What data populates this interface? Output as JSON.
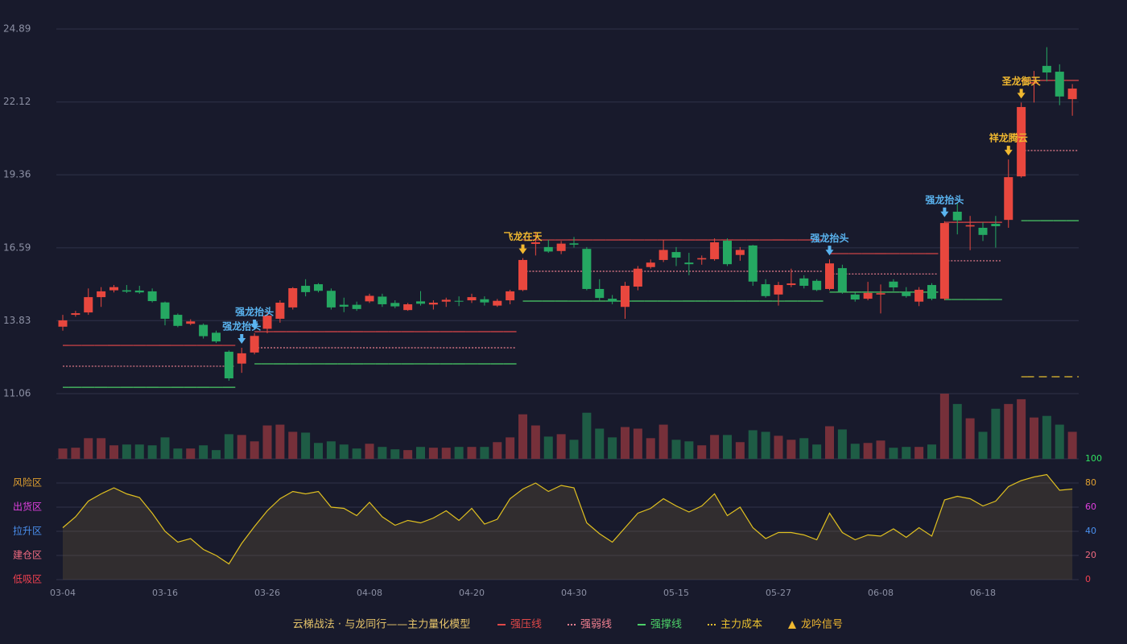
{
  "chart_data": [
    {
      "type": "candlestick",
      "categories": [
        "03-04",
        null,
        null,
        null,
        null,
        null,
        null,
        null,
        "03-16",
        null,
        null,
        null,
        null,
        null,
        null,
        null,
        "03-26",
        null,
        null,
        null,
        null,
        null,
        null,
        null,
        "04-08",
        null,
        null,
        null,
        null,
        null,
        null,
        null,
        "04-20",
        null,
        null,
        null,
        null,
        null,
        null,
        null,
        "04-30",
        null,
        null,
        null,
        null,
        null,
        null,
        null,
        "05-15",
        null,
        null,
        null,
        null,
        null,
        null,
        null,
        "05-27",
        null,
        null,
        null,
        null,
        null,
        null,
        null,
        "06-08",
        null,
        null,
        null,
        null,
        null,
        null,
        null,
        "06-18",
        null,
        null,
        null,
        null,
        null,
        null,
        null
      ],
      "open": [
        13.6,
        14.05,
        14.14,
        14.72,
        14.98,
        14.98,
        14.97,
        14.94,
        14.52,
        14.05,
        13.71,
        13.67,
        13.37,
        12.65,
        12.2,
        12.62,
        13.52,
        13.9,
        14.33,
        15.15,
        15.21,
        14.96,
        14.43,
        14.43,
        14.56,
        14.74,
        14.5,
        14.23,
        14.56,
        14.44,
        14.55,
        14.58,
        14.6,
        14.64,
        14.4,
        14.6,
        14.99,
        16.74,
        16.62,
        16.47,
        16.76,
        16.55,
        15.03,
        14.66,
        14.35,
        15.12,
        15.86,
        16.13,
        16.43,
        16.03,
        16.15,
        16.16,
        16.86,
        16.32,
        16.68,
        15.21,
        14.82,
        15.18,
        15.43,
        15.34,
        15.03,
        15.82,
        14.82,
        14.66,
        14.82,
        15.31,
        14.91,
        14.55,
        15.18,
        14.66,
        17.96,
        17.4,
        17.35,
        17.5,
        17.65,
        19.3,
        22.82,
        23.49,
        23.27,
        22.23
      ],
      "high": [
        14.05,
        14.2,
        15.05,
        15.1,
        15.18,
        15.18,
        15.15,
        15.05,
        14.55,
        14.1,
        13.88,
        13.72,
        13.45,
        12.7,
        12.8,
        13.35,
        14.15,
        14.6,
        15.1,
        15.4,
        15.25,
        15.05,
        14.7,
        14.55,
        14.85,
        14.85,
        14.6,
        14.5,
        14.95,
        14.6,
        14.7,
        14.75,
        14.85,
        14.75,
        14.65,
        15.0,
        16.2,
        17.2,
        16.9,
        16.85,
        17.0,
        16.62,
        15.4,
        14.8,
        15.3,
        15.9,
        16.15,
        16.9,
        16.62,
        16.4,
        16.3,
        16.95,
        16.95,
        16.62,
        16.7,
        15.4,
        15.3,
        15.8,
        15.55,
        15.4,
        16.15,
        15.95,
        14.9,
        15.3,
        15.2,
        15.4,
        15.1,
        15.1,
        15.25,
        17.6,
        18.3,
        17.8,
        17.55,
        17.8,
        19.94,
        22.1,
        23.3,
        24.2,
        23.55,
        22.8
      ],
      "low": [
        13.45,
        13.98,
        14.05,
        14.35,
        14.9,
        14.88,
        14.85,
        14.52,
        13.65,
        13.58,
        13.66,
        13.15,
        12.98,
        11.55,
        11.85,
        12.55,
        13.35,
        13.75,
        14.25,
        14.75,
        14.9,
        14.25,
        14.15,
        14.2,
        14.5,
        14.35,
        14.3,
        14.2,
        14.4,
        14.25,
        14.35,
        14.38,
        14.5,
        14.4,
        14.35,
        14.45,
        14.95,
        16.3,
        16.4,
        16.35,
        16.6,
        14.98,
        14.6,
        14.45,
        13.9,
        14.98,
        15.8,
        16.05,
        15.9,
        15.55,
        15.95,
        16.1,
        15.9,
        16.1,
        15.15,
        14.7,
        14.4,
        15.1,
        15.05,
        14.95,
        14.98,
        14.85,
        14.55,
        14.6,
        14.1,
        14.95,
        14.7,
        14.38,
        14.6,
        14.6,
        17.1,
        16.5,
        16.85,
        16.6,
        17.35,
        19.25,
        22.1,
        22.9,
        22.0,
        21.6
      ],
      "close": [
        13.84,
        14.11,
        14.72,
        14.94,
        15.1,
        14.93,
        14.9,
        14.57,
        13.9,
        13.63,
        13.8,
        13.24,
        13.04,
        11.64,
        12.59,
        13.25,
        14.02,
        14.51,
        15.06,
        14.91,
        14.96,
        14.33,
        14.36,
        14.27,
        14.77,
        14.45,
        14.37,
        14.45,
        14.47,
        14.51,
        14.62,
        14.55,
        14.72,
        14.52,
        14.58,
        14.94,
        16.13,
        16.8,
        16.45,
        16.75,
        16.71,
        15.03,
        14.69,
        14.55,
        15.15,
        15.8,
        16.03,
        16.51,
        16.22,
        15.97,
        16.2,
        16.8,
        15.97,
        16.51,
        15.31,
        14.76,
        15.18,
        15.24,
        15.15,
        14.99,
        16.0,
        14.93,
        14.63,
        14.88,
        14.87,
        15.09,
        14.76,
        15.0,
        14.66,
        17.53,
        17.63,
        17.45,
        17.08,
        17.41,
        19.27,
        21.93,
        22.87,
        23.24,
        22.33,
        22.63
      ],
      "up_color": "#e8473e",
      "down_color": "#25a862",
      "ylim": [
        11.06,
        24.89
      ],
      "yticks": [
        24.89,
        22.12,
        19.36,
        16.59,
        13.83,
        11.06
      ],
      "grid": true,
      "levels": [
        {
          "name": "强压线",
          "color": "#e04848",
          "dash": false,
          "values": [
            12.89,
            12.89,
            12.89,
            12.89,
            12.89,
            12.89,
            12.89,
            12.89,
            12.89,
            12.89,
            12.89,
            12.89,
            12.89,
            12.89,
            null,
            13.41,
            13.41,
            13.41,
            13.41,
            13.41,
            13.41,
            13.41,
            13.41,
            13.41,
            13.41,
            13.41,
            13.41,
            13.41,
            13.41,
            13.41,
            13.41,
            13.41,
            13.41,
            13.41,
            13.41,
            13.41,
            16.89,
            16.89,
            16.89,
            16.89,
            16.89,
            16.89,
            16.89,
            16.89,
            16.89,
            16.89,
            16.89,
            16.89,
            16.89,
            16.89,
            16.89,
            16.89,
            16.89,
            16.89,
            16.89,
            16.89,
            16.89,
            16.89,
            16.89,
            16.89,
            16.37,
            16.37,
            16.37,
            16.37,
            16.37,
            16.37,
            16.37,
            16.37,
            16.37,
            17.56,
            17.56,
            17.56,
            17.56,
            17.56,
            null,
            22.94,
            22.94,
            22.94,
            22.94,
            22.94
          ]
        },
        {
          "name": "强弱线",
          "color": "#f08090",
          "dash": true,
          "values": [
            12.1,
            12.1,
            12.1,
            12.1,
            12.1,
            12.1,
            12.1,
            12.1,
            12.1,
            12.1,
            12.1,
            12.1,
            12.1,
            12.1,
            null,
            12.8,
            12.8,
            12.8,
            12.8,
            12.8,
            12.8,
            12.8,
            12.8,
            12.8,
            12.8,
            12.8,
            12.8,
            12.8,
            12.8,
            12.8,
            12.8,
            12.8,
            12.8,
            12.8,
            12.8,
            12.8,
            15.7,
            15.7,
            15.7,
            15.7,
            15.7,
            15.7,
            15.7,
            15.7,
            15.7,
            15.7,
            15.7,
            15.7,
            15.7,
            15.7,
            15.7,
            15.7,
            15.7,
            15.7,
            15.7,
            15.7,
            15.7,
            15.7,
            15.7,
            15.7,
            15.6,
            15.6,
            15.6,
            15.6,
            15.6,
            15.6,
            15.6,
            15.6,
            15.6,
            16.1,
            16.1,
            16.1,
            16.1,
            16.1,
            null,
            20.28,
            20.28,
            20.28,
            20.28,
            20.28
          ]
        },
        {
          "name": "强撑线",
          "color": "#4cd068",
          "dash": false,
          "values": [
            11.3,
            11.3,
            11.3,
            11.3,
            11.3,
            11.3,
            11.3,
            11.3,
            11.3,
            11.3,
            11.3,
            11.3,
            11.3,
            11.3,
            null,
            12.19,
            12.19,
            12.19,
            12.19,
            12.19,
            12.19,
            12.19,
            12.19,
            12.19,
            12.19,
            12.19,
            12.19,
            12.19,
            12.19,
            12.19,
            12.19,
            12.19,
            12.19,
            12.19,
            12.19,
            12.19,
            14.57,
            14.57,
            14.57,
            14.57,
            14.57,
            14.57,
            14.57,
            14.57,
            14.57,
            14.57,
            14.57,
            14.57,
            14.57,
            14.57,
            14.57,
            14.57,
            14.57,
            14.57,
            14.57,
            14.57,
            14.57,
            14.57,
            14.57,
            14.57,
            14.91,
            14.91,
            14.91,
            14.91,
            14.91,
            14.91,
            14.91,
            14.91,
            14.91,
            14.63,
            14.63,
            14.63,
            14.63,
            14.63,
            null,
            17.62,
            17.62,
            17.62,
            17.62,
            17.62
          ]
        },
        {
          "name": "主力成本",
          "color": "#e8c030",
          "dash": true,
          "values": [
            null,
            null,
            null,
            null,
            null,
            null,
            null,
            null,
            null,
            null,
            null,
            null,
            null,
            null,
            null,
            null,
            null,
            null,
            null,
            null,
            null,
            null,
            null,
            null,
            null,
            null,
            null,
            null,
            null,
            null,
            null,
            null,
            null,
            null,
            null,
            null,
            null,
            null,
            null,
            null,
            null,
            null,
            null,
            null,
            null,
            null,
            null,
            null,
            null,
            null,
            null,
            null,
            null,
            null,
            null,
            null,
            null,
            null,
            null,
            null,
            null,
            null,
            null,
            null,
            null,
            null,
            null,
            null,
            null,
            null,
            null,
            null,
            null,
            null,
            null,
            11.7,
            11.7,
            11.7,
            11.7,
            11.7
          ]
        }
      ],
      "signals": [
        null,
        null,
        null,
        null,
        null,
        null,
        null,
        null,
        null,
        null,
        null,
        null,
        null,
        null,
        {
          "text": "强龙抬头",
          "color": "#5ab4f0"
        },
        {
          "text": "强龙抬头",
          "color": "#5ab4f0"
        },
        null,
        null,
        null,
        null,
        null,
        null,
        null,
        null,
        null,
        null,
        null,
        null,
        null,
        null,
        null,
        null,
        null,
        null,
        null,
        null,
        {
          "text": "飞龙在天",
          "color": "#f0b830"
        },
        null,
        null,
        null,
        null,
        null,
        null,
        null,
        null,
        null,
        null,
        null,
        null,
        null,
        null,
        null,
        null,
        null,
        null,
        null,
        null,
        null,
        null,
        null,
        {
          "text": "强龙抬头",
          "color": "#5ab4f0"
        },
        null,
        null,
        null,
        null,
        null,
        null,
        null,
        null,
        {
          "text": "强龙抬头",
          "color": "#5ab4f0"
        },
        null,
        null,
        null,
        null,
        {
          "text": "祥龙腾云",
          "color": "#f0b830"
        },
        {
          "text": "圣龙御天",
          "color": "#f0b830"
        },
        null,
        null,
        null,
        null
      ]
    },
    {
      "type": "volume",
      "up_color": "#76303a",
      "down_color": "#1e5c45",
      "values": [
        13,
        14,
        26,
        26,
        17,
        18,
        18,
        17,
        27,
        13,
        13,
        17,
        11,
        31,
        30,
        22,
        42,
        43,
        34,
        33,
        20,
        22,
        18,
        13,
        19,
        15,
        12,
        11,
        15,
        14,
        14,
        15,
        15,
        15,
        21,
        27,
        56,
        42,
        28,
        31,
        24,
        58,
        38,
        27,
        40,
        38,
        26,
        43,
        24,
        22,
        17,
        30,
        30,
        21,
        36,
        34,
        29,
        24,
        26,
        18,
        41,
        37,
        19,
        20,
        23,
        14,
        15,
        15,
        18,
        82,
        69,
        51,
        34,
        63,
        69,
        75,
        52,
        54,
        43,
        34
      ]
    },
    {
      "type": "line",
      "color": "#e0c020",
      "values": [
        43,
        52,
        65,
        71,
        76,
        71,
        68,
        55,
        40,
        31,
        34,
        25,
        20,
        13,
        30,
        44,
        57,
        67,
        73,
        71,
        73,
        60,
        59,
        53,
        64,
        52,
        45,
        49,
        47,
        51,
        57,
        49,
        59,
        46,
        50,
        67,
        75,
        80,
        73,
        78,
        76,
        47,
        38,
        31,
        43,
        55,
        59,
        67,
        61,
        56,
        61,
        71,
        53,
        60,
        43,
        34,
        39,
        39,
        37,
        33,
        55,
        39,
        33,
        37,
        36,
        42,
        35,
        43,
        36,
        66,
        69,
        67,
        61,
        65,
        77,
        82,
        85,
        87,
        74,
        75
      ],
      "ylim": [
        0,
        100
      ],
      "yticks": [
        0,
        20,
        40,
        60,
        80,
        100
      ],
      "tick_colors": [
        "#f04050",
        "#f06a80",
        "#4a90f0",
        "#e040e0",
        "#e0a030",
        "#30e060"
      ],
      "zones": [
        {
          "value": 80,
          "label": "风险区",
          "color": "#e0a030"
        },
        {
          "value": 60,
          "label": "出货区",
          "color": "#e040e0"
        },
        {
          "value": 40,
          "label": "拉升区",
          "color": "#4a90f0"
        },
        {
          "value": 20,
          "label": "建仓区",
          "color": "#f06a80"
        },
        {
          "value": 0,
          "label": "低吸区",
          "color": "#f04050"
        }
      ]
    }
  ],
  "legend": {
    "title": "云梯战法 · 与龙同行——主力量化模型",
    "signal": "龙吟信号",
    "signal_color": "#f0b830"
  }
}
